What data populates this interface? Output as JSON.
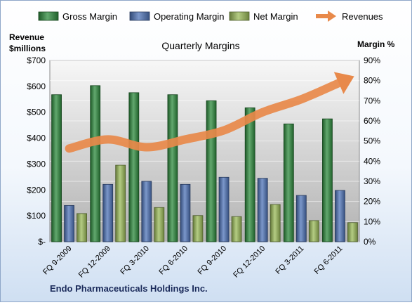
{
  "chart_data": {
    "type": "bar",
    "title": "Quarterly Margins",
    "footer": "Endo Pharmaceuticals Holdings Inc.",
    "categories": [
      "FQ 9-2009",
      "FQ 12-2009",
      "FQ 3-2010",
      "FQ 6-2010",
      "FQ 9-2010",
      "FQ 12-2010",
      "FQ 3-2011",
      "FQ 6-2011"
    ],
    "series": [
      {
        "name": "Gross Margin",
        "axis": "right",
        "color": "#2e8b3e",
        "values": [
          73,
          77.5,
          74,
          73,
          70,
          66.5,
          58.5,
          61
        ]
      },
      {
        "name": "Operating Margin",
        "axis": "right",
        "color": "#4f74b8",
        "values": [
          18,
          28.5,
          30,
          28.5,
          32,
          31.5,
          23,
          25.5
        ]
      },
      {
        "name": "Net Margin",
        "axis": "right",
        "color": "#9bbb59",
        "values": [
          14,
          38,
          17,
          13,
          12.5,
          18.5,
          10.5,
          9.5
        ]
      }
    ],
    "revenues": {
      "name": "Revenues",
      "axis": "left",
      "color": "#e8894a",
      "values": [
        360,
        395,
        365,
        395,
        430,
        500,
        550,
        615
      ]
    },
    "left_axis": {
      "title_line1": "Revenue",
      "title_line2": "$millions",
      "min": 0,
      "max": 700,
      "step": 100,
      "tick_labels": [
        "$-",
        "$100",
        "$200",
        "$300",
        "$400",
        "$500",
        "$600",
        "$700"
      ]
    },
    "right_axis": {
      "title": "Margin %",
      "min": 0,
      "max": 90,
      "step": 10,
      "tick_labels": [
        "0%",
        "10%",
        "20%",
        "30%",
        "40%",
        "50%",
        "60%",
        "70%",
        "80%",
        "90%"
      ]
    },
    "legend_position": "top",
    "grid": true
  }
}
